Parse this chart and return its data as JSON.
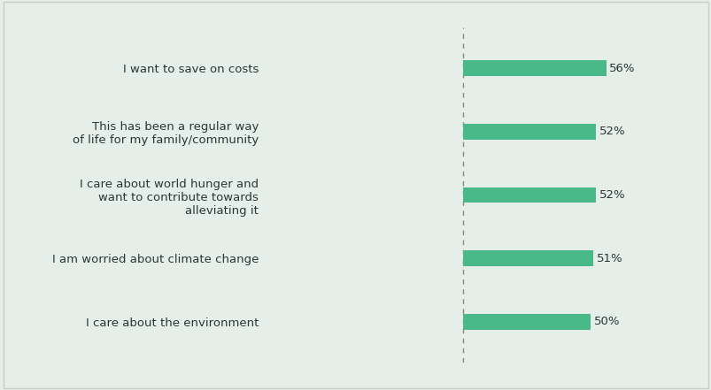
{
  "categories": [
    "I care about the environment",
    "I am worried about climate change",
    "I care about world hunger and\nwant to contribute towards\nalleviating it",
    "This has been a regular way\nof life for my family/community",
    "I want to save on costs"
  ],
  "values": [
    50,
    51,
    52,
    52,
    56
  ],
  "bar_color": "#4ab98a",
  "background_color": "#e6eeea",
  "text_color": "#2a3535",
  "pct_labels": [
    "50%",
    "51%",
    "52%",
    "52%",
    "56%"
  ],
  "xlim": [
    -75,
    75
  ],
  "bar_height": 0.25,
  "figsize": [
    8.04,
    4.41
  ],
  "dpi": 100,
  "font_size_labels": 9.5,
  "font_size_pct": 9.5,
  "border_color": "#c5cfc8"
}
